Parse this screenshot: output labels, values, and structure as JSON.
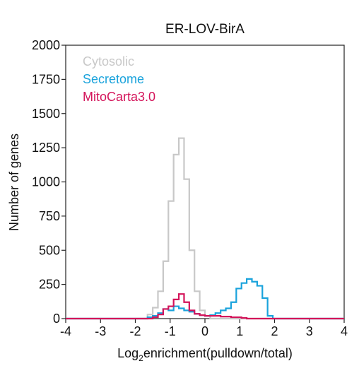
{
  "chart_data": {
    "type": "histogram",
    "title": "ER-LOV-BirA",
    "xlabel": {
      "main": "Log",
      "sub": "2",
      "rest": "enrichment(pulldown/total)"
    },
    "ylabel": "Number of genes",
    "xlim": [
      -4,
      4
    ],
    "ylim": [
      0,
      2000
    ],
    "xticks": [
      -4,
      -3,
      -2,
      -1,
      0,
      1,
      2,
      3,
      4
    ],
    "yticks": [
      0,
      250,
      500,
      750,
      1000,
      1250,
      1500,
      1750,
      2000
    ],
    "grid": false,
    "legend_position": "top-left",
    "bins": {
      "start": -1.8,
      "width": 0.15
    },
    "series": [
      {
        "name": "Cytosolic",
        "color": "#c8c8c8",
        "values": [
          0,
          30,
          80,
          200,
          420,
          860,
          1200,
          1320,
          1020,
          500,
          200,
          60,
          20,
          0
        ]
      },
      {
        "name": "Secretome",
        "color": "#1aa3dc",
        "start": -1.65,
        "values": [
          10,
          20,
          40,
          70,
          60,
          90,
          75,
          60,
          50,
          35,
          25,
          20,
          25,
          40,
          60,
          75,
          120,
          220,
          260,
          290,
          270,
          240,
          150,
          20,
          0
        ]
      },
      {
        "name": "MitoCarta3.0",
        "color": "#d4145a",
        "start": -1.5,
        "values": [
          10,
          30,
          70,
          90,
          140,
          180,
          120,
          60,
          35,
          25,
          20,
          20,
          20,
          15,
          15,
          10,
          10,
          5,
          0
        ]
      }
    ]
  }
}
